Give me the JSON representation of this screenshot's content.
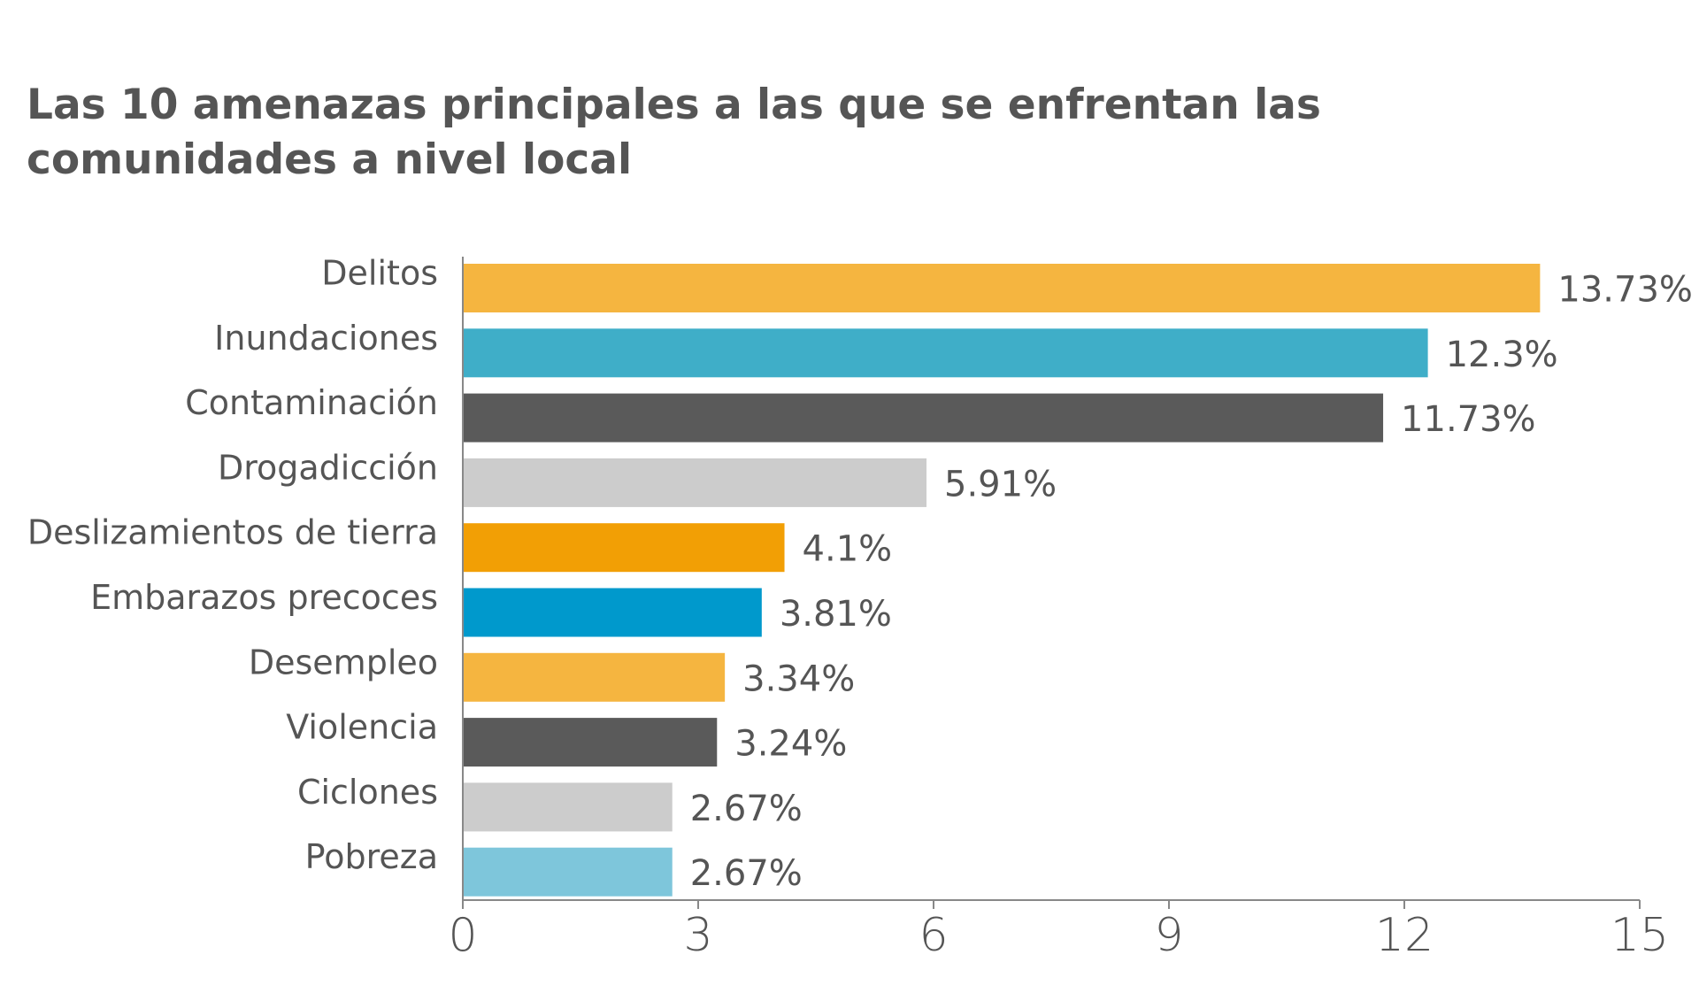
{
  "chart_data": {
    "type": "bar",
    "orientation": "horizontal",
    "title": "Las 10 amenazas principales a las que se enfrentan las comunidades a nivel local",
    "categories": [
      "Delitos",
      "Inundaciones",
      "Contaminación",
      "Drogadicción",
      "Deslizamientos de tierra",
      "Embarazos precoces",
      "Desempleo",
      "Violencia",
      "Ciclones",
      "Pobreza"
    ],
    "values": [
      13.73,
      12.3,
      11.73,
      5.91,
      4.1,
      3.81,
      3.34,
      3.24,
      2.67,
      2.67
    ],
    "value_labels": [
      "13.73%",
      "12.3%",
      "11.73%",
      "5.91%",
      "4.1%",
      "3.81%",
      "3.34%",
      "3.24%",
      "2.67%",
      "2.67%"
    ],
    "colors": [
      "#F5B540",
      "#3FAEC8",
      "#5A5A5A",
      "#CCCCCC",
      "#F29F05",
      "#0099CC",
      "#F5B540",
      "#5A5A5A",
      "#CCCCCC",
      "#7EC6DB"
    ],
    "xlim": [
      0,
      15
    ],
    "xticks": [
      0,
      3,
      6,
      9,
      12,
      15
    ],
    "xlabel": "",
    "ylabel": "",
    "grid": false,
    "legend": "none"
  }
}
